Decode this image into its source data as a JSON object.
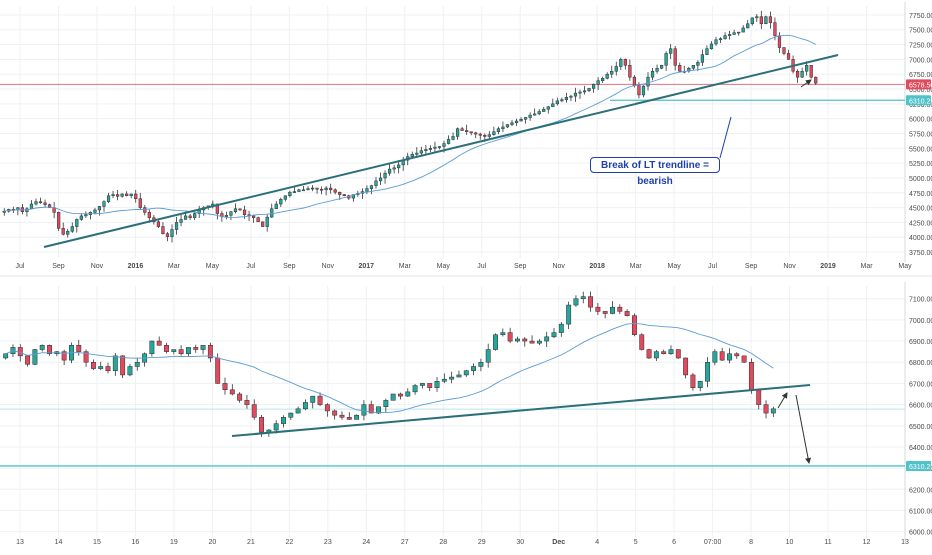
{
  "colors": {
    "up": "#26a69a",
    "down": "#e04a5e",
    "wick": "#555555",
    "ma": "#5b9bd5",
    "trendline": "#2b6f7a",
    "support": "#4fc3c9",
    "price_line": "#e3707e",
    "grid": "#eef0f3",
    "axis_text": "#4a4a4a",
    "note": "#1f3fae"
  },
  "chart_data": [
    {
      "type": "candlestick",
      "timeframe": "weekly",
      "x_tick_labels": [
        "Jul",
        "Sep",
        "Nov",
        "2016",
        "Mar",
        "May",
        "Jul",
        "Sep",
        "Nov",
        "2017",
        "Mar",
        "May",
        "Jul",
        "Sep",
        "Nov",
        "2018",
        "Mar",
        "May",
        "Jul",
        "Sep",
        "Nov",
        "2019",
        "Mar",
        "May"
      ],
      "y_tick_labels": [
        "7750.00",
        "7500.00",
        "7250.00",
        "7000.00",
        "6750.00",
        "6500.00",
        "6250.00",
        "6000.00",
        "5750.00",
        "5500.00",
        "5250.00",
        "5000.00",
        "4750.00",
        "4500.00",
        "4250.00",
        "4000.00",
        "3750.00"
      ],
      "ylim": [
        3650,
        7900
      ],
      "close_series": [
        4440,
        4470,
        4460,
        4500,
        4430,
        4480,
        4560,
        4600,
        4580,
        4550,
        4500,
        4420,
        4150,
        4050,
        4100,
        4180,
        4300,
        4360,
        4380,
        4420,
        4460,
        4520,
        4600,
        4700,
        4720,
        4690,
        4730,
        4700,
        4730,
        4650,
        4500,
        4420,
        4330,
        4260,
        4180,
        4060,
        4010,
        4130,
        4250,
        4300,
        4360,
        4330,
        4400,
        4460,
        4500,
        4530,
        4560,
        4400,
        4350,
        4370,
        4430,
        4480,
        4460,
        4380,
        4360,
        4330,
        4260,
        4180,
        4340,
        4480,
        4560,
        4640,
        4700,
        4760,
        4770,
        4800,
        4800,
        4820,
        4830,
        4810,
        4800,
        4830,
        4800,
        4760,
        4720,
        4700,
        4660,
        4720,
        4740,
        4770,
        4820,
        4870,
        4950,
        5000,
        5080,
        5150,
        5170,
        5220,
        5300,
        5360,
        5400,
        5420,
        5460,
        5480,
        5500,
        5520,
        5530,
        5580,
        5650,
        5700,
        5830,
        5800,
        5780,
        5760,
        5740,
        5720,
        5700,
        5730,
        5780,
        5830,
        5860,
        5900,
        5930,
        5960,
        5990,
        6020,
        6060,
        6080,
        6120,
        6160,
        6200,
        6250,
        6300,
        6320,
        6360,
        6380,
        6430,
        6450,
        6470,
        6510,
        6580,
        6640,
        6680,
        6750,
        6800,
        6880,
        7000,
        6900,
        6700,
        6560,
        6400,
        6550,
        6700,
        6800,
        6850,
        6900,
        7100,
        7180,
        6900,
        6800,
        6800,
        6850,
        6900,
        6950,
        7080,
        7180,
        7260,
        7330,
        7350,
        7400,
        7420,
        7450,
        7460,
        7530,
        7600,
        7700,
        7720,
        7600,
        7720,
        7620,
        7400,
        7200,
        7100,
        7000,
        6800,
        6700,
        6800,
        6900,
        6700,
        6600
      ],
      "ma_period": 20,
      "horizontal_levels": [
        {
          "value": 6578.5,
          "label": "6578.50"
        },
        {
          "value": 6310.25,
          "label": "6310.25"
        }
      ],
      "annotation": "Break of LT trendline = bearish"
    },
    {
      "type": "candlestick",
      "timeframe": "intraday",
      "x_tick_labels": [
        "13",
        "14",
        "15",
        "16",
        "19",
        "20",
        "21",
        "22",
        "23",
        "24",
        "27",
        "28",
        "29",
        "30",
        "Dec",
        "4",
        "5",
        "6",
        "07:00",
        "8",
        "10",
        "11",
        "12",
        "13"
      ],
      "y_tick_labels": [
        "7100.00",
        "7000.00",
        "6900.00",
        "6800.00",
        "6700.00",
        "6600.00",
        "6500.00",
        "6400.00",
        "6300.00",
        "6200.00",
        "6100.00",
        "6000.00"
      ],
      "ylim": [
        5970,
        7160
      ],
      "close_series": [
        6840,
        6870,
        6830,
        6790,
        6860,
        6880,
        6840,
        6850,
        6810,
        6880,
        6850,
        6800,
        6770,
        6780,
        6760,
        6830,
        6740,
        6780,
        6800,
        6840,
        6900,
        6880,
        6850,
        6860,
        6840,
        6870,
        6860,
        6880,
        6820,
        6700,
        6670,
        6650,
        6620,
        6600,
        6540,
        6470,
        6480,
        6510,
        6540,
        6560,
        6580,
        6610,
        6640,
        6600,
        6570,
        6550,
        6540,
        6530,
        6550,
        6600,
        6560,
        6590,
        6620,
        6650,
        6640,
        6660,
        6690,
        6700,
        6680,
        6710,
        6720,
        6730,
        6740,
        6760,
        6780,
        6800,
        6860,
        6930,
        6940,
        6900,
        6910,
        6900,
        6890,
        6900,
        6920,
        6940,
        6980,
        7070,
        7100,
        7110,
        7060,
        7040,
        7030,
        7060,
        7040,
        7020,
        6930,
        6860,
        6820,
        6850,
        6840,
        6860,
        6820,
        6740,
        6680,
        6710,
        6800,
        6850,
        6810,
        6840,
        6830,
        6800,
        6670,
        6600,
        6560,
        6580
      ],
      "ma_period": 20,
      "horizontal_levels": [
        {
          "value": 6578.5,
          "label": ""
        },
        {
          "value": 6310.25,
          "label": "6310.25"
        }
      ]
    }
  ]
}
